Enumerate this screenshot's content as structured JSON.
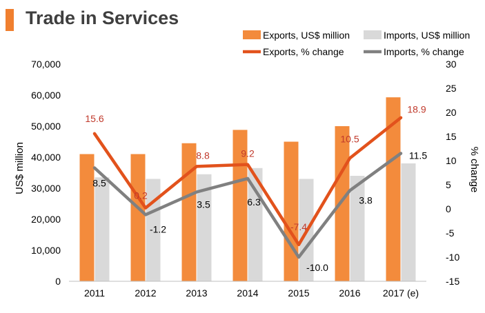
{
  "header": {
    "title": "Trade in Services"
  },
  "chart_data": {
    "type": "bar+line",
    "title": "Trade in Services",
    "categories": [
      "2011",
      "2012",
      "2013",
      "2014",
      "2015",
      "2016",
      "2017 (e)"
    ],
    "series": [
      {
        "name": "Exports, US$ million",
        "type": "bar",
        "axis": "left",
        "color": "#f38b3c",
        "values": [
          41000,
          41000,
          44500,
          48800,
          45000,
          50000,
          59300
        ]
      },
      {
        "name": "Imports, US$ million",
        "type": "bar",
        "axis": "left",
        "color": "#d9d9d9",
        "values": [
          33500,
          33000,
          34500,
          36500,
          33000,
          34000,
          38000
        ]
      },
      {
        "name": "Exports, % change",
        "type": "line",
        "axis": "right",
        "color": "#e2521c",
        "label_color": "#c0392b",
        "values": [
          15.6,
          0.2,
          8.8,
          9.2,
          -7.4,
          10.5,
          18.9
        ],
        "labels": [
          "15.6",
          "0.2",
          "8.8",
          "9.2",
          "-7.4",
          "10.5",
          "18.9"
        ]
      },
      {
        "name": "Imports, % change",
        "type": "line",
        "axis": "right",
        "color": "#808080",
        "label_color": "#000000",
        "values": [
          8.5,
          -1.2,
          3.5,
          6.3,
          -10.0,
          3.8,
          11.5
        ],
        "labels": [
          "8.5",
          "-1.2",
          "3.5",
          "6.3",
          "-10.0",
          "3.8",
          "11.5"
        ]
      }
    ],
    "ylabel": "US$ million",
    "ylim": [
      0,
      70000
    ],
    "yticks": [
      "0",
      "10,000",
      "20,000",
      "30,000",
      "40,000",
      "50,000",
      "60,000",
      "70,000"
    ],
    "y2label": "% change",
    "y2lim": [
      -15,
      30
    ],
    "y2ticks": [
      "-15",
      "-10",
      "-5",
      "0",
      "5",
      "10",
      "15",
      "20",
      "25",
      "30"
    ],
    "legend": "top-right",
    "grid": false
  }
}
